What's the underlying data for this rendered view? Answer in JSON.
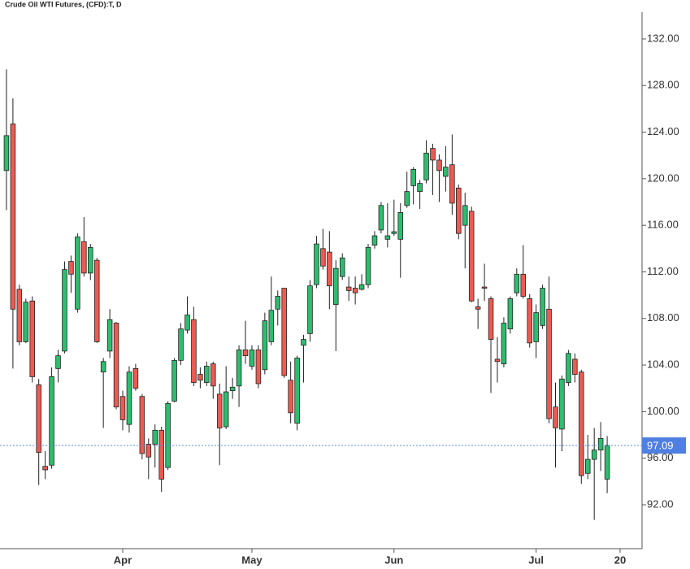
{
  "chart_data": {
    "type": "candlestick",
    "title": "Crude Oil WTI Futures, (CFD):T, D",
    "up_color": "#2dbd6e",
    "down_color": "#ec5b52",
    "open": [
      120.7,
      124.7,
      110.5,
      106.0,
      109.5,
      102.3,
      95.3,
      95.4,
      103.7,
      105.2,
      112.9,
      108.8,
      114.6,
      111.9,
      113.0,
      103.4,
      105.2,
      107.6,
      101.3,
      98.9,
      103.7,
      101.3,
      97.2,
      97.2,
      98.4,
      95.2,
      100.9,
      104.4,
      107.0,
      107.9,
      103.2,
      102.5,
      104.1,
      101.5,
      98.7,
      101.8,
      102.2,
      105.3,
      103.9,
      105.3,
      103.6,
      106.0,
      108.8,
      110.6,
      102.7,
      99.0,
      105.7,
      106.7,
      110.9,
      114.0,
      113.7,
      109.2,
      111.6,
      110.7,
      110.6,
      110.5,
      110.9,
      114.3,
      115.6,
      114.8,
      115.3,
      114.8,
      117.7,
      119.4,
      118.9,
      119.9,
      122.6,
      121.6,
      120.2,
      121.2,
      119.2,
      116.0,
      117.2,
      109.0,
      110.7,
      109.7,
      104.5,
      104.1,
      107.1,
      110.2,
      111.8,
      109.7,
      106.0,
      107.4,
      108.8,
      100.4,
      98.5,
      102.5,
      104.5,
      103.4,
      94.7,
      95.9,
      96.7,
      94.2
    ],
    "high": [
      129.4,
      126.9,
      110.9,
      109.7,
      109.9,
      102.8,
      96.6,
      103.8,
      105.3,
      112.9,
      113.4,
      115.3,
      116.7,
      114.4,
      113.2,
      104.6,
      108.8,
      107.7,
      101.8,
      103.9,
      104.1,
      101.5,
      97.7,
      98.9,
      98.7,
      100.9,
      104.6,
      107.6,
      109.9,
      109.0,
      103.8,
      104.3,
      104.3,
      102.4,
      103.9,
      102.9,
      105.7,
      107.8,
      105.7,
      105.7,
      108.5,
      111.6,
      110.4,
      110.6,
      104.3,
      104.8,
      106.6,
      111.3,
      115.1,
      115.7,
      115.5,
      113.0,
      113.6,
      111.6,
      111.6,
      111.8,
      114.4,
      115.5,
      118.0,
      117.9,
      118.2,
      117.9,
      120.6,
      121.0,
      119.9,
      123.3,
      123.0,
      122.1,
      122.8,
      123.8,
      119.5,
      118.8,
      117.6,
      109.7,
      112.7,
      109.9,
      106.4,
      108.1,
      109.9,
      112.3,
      114.3,
      110.1,
      109.2,
      110.9,
      111.6,
      102.5,
      103.1,
      105.3,
      105.0,
      103.6,
      98.0,
      98.6,
      99.1,
      97.9
    ],
    "low": [
      117.3,
      103.7,
      105.7,
      105.9,
      102.5,
      93.7,
      94.2,
      95.1,
      102.5,
      105.0,
      110.2,
      108.5,
      111.6,
      111.3,
      105.9,
      98.6,
      104.6,
      100.2,
      98.4,
      98.2,
      101.8,
      95.9,
      94.2,
      95.2,
      93.1,
      95.0,
      100.8,
      104.0,
      106.7,
      102.2,
      102.0,
      102.2,
      101.1,
      95.4,
      98.5,
      101.1,
      100.4,
      104.1,
      103.6,
      102.0,
      103.2,
      105.7,
      107.4,
      102.9,
      99.0,
      98.4,
      102.5,
      106.0,
      110.6,
      112.2,
      108.8,
      105.2,
      111.3,
      109.5,
      109.2,
      110.4,
      110.6,
      114.0,
      115.3,
      114.1,
      115.1,
      111.5,
      117.5,
      117.8,
      117.4,
      119.6,
      118.6,
      118.0,
      118.9,
      116.9,
      114.8,
      112.3,
      109.4,
      107.1,
      109.5,
      101.6,
      102.5,
      103.8,
      106.7,
      109.9,
      109.7,
      105.5,
      104.6,
      107.1,
      99.0,
      95.2,
      96.6,
      102.2,
      102.5,
      93.8,
      94.2,
      90.7,
      94.9,
      93.0
    ],
    "close": [
      123.7,
      108.8,
      106.0,
      109.4,
      103.0,
      96.5,
      95.0,
      103.0,
      104.8,
      112.2,
      111.8,
      115.0,
      111.9,
      114.1,
      106.0,
      104.3,
      107.9,
      100.4,
      99.3,
      103.4,
      102.0,
      96.4,
      96.1,
      98.4,
      94.2,
      100.7,
      104.4,
      107.1,
      108.3,
      102.5,
      102.7,
      103.9,
      102.2,
      98.6,
      101.7,
      102.1,
      105.3,
      104.8,
      105.3,
      102.4,
      107.8,
      108.7,
      109.9,
      103.1,
      99.9,
      104.6,
      106.2,
      110.8,
      114.4,
      112.5,
      110.8,
      112.3,
      113.2,
      110.4,
      110.2,
      110.9,
      114.1,
      115.1,
      117.7,
      115.1,
      115.45,
      117.1,
      118.9,
      120.8,
      119.6,
      122.2,
      121.6,
      120.7,
      121.0,
      117.9,
      115.3,
      117.7,
      109.5,
      108.8,
      110.6,
      106.2,
      104.3,
      107.6,
      109.7,
      111.8,
      109.9,
      105.9,
      108.5,
      110.6,
      99.4,
      98.6,
      102.8,
      105.0,
      103.2,
      94.5,
      95.9,
      96.7,
      97.7,
      97.1
    ],
    "ylim": [
      88.23,
      134.3
    ],
    "yticks": [
      {
        "value": 92,
        "label": "92.00"
      },
      {
        "value": 96,
        "label": "96.00"
      },
      {
        "value": 100,
        "label": "100.00"
      },
      {
        "value": 104,
        "label": "104.00"
      },
      {
        "value": 108,
        "label": "108.00"
      },
      {
        "value": 112,
        "label": "112.00"
      },
      {
        "value": 116,
        "label": "116.00"
      },
      {
        "value": 120,
        "label": "120.00"
      },
      {
        "value": 124,
        "label": "124.00"
      },
      {
        "value": 128,
        "label": "128.00"
      },
      {
        "value": 132,
        "label": "132.00"
      }
    ],
    "xlim": [
      -1,
      98.4
    ],
    "xticks": [
      {
        "value": 18,
        "label": "Apr"
      },
      {
        "value": 38,
        "label": "May"
      },
      {
        "value": 60,
        "label": "Jun"
      },
      {
        "value": 82,
        "label": "Jul"
      },
      {
        "value": 95,
        "label": "20"
      }
    ],
    "last_price": 97.09,
    "last_price_color": "#4f7fe0"
  }
}
